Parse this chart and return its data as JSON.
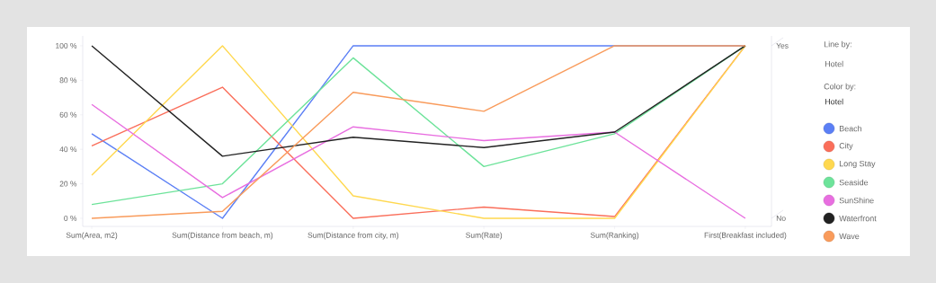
{
  "chart_data": {
    "type": "line",
    "categories": [
      "Sum(Area, m2)",
      "Sum(Distance from beach, m)",
      "Sum(Distance from city, m)",
      "Sum(Rate)",
      "Sum(Ranking)",
      "First(Breakfast included)"
    ],
    "series": [
      {
        "name": "Beach",
        "color": "#5b7ff5",
        "values": [
          49,
          0,
          100,
          100,
          100,
          100
        ]
      },
      {
        "name": "City",
        "color": "#fa6e5a",
        "values": [
          42,
          76,
          0,
          6.5,
          1,
          100
        ]
      },
      {
        "name": "Long Stay",
        "color": "#ffd84f",
        "values": [
          25,
          100,
          13,
          0,
          0,
          100
        ]
      },
      {
        "name": "Seaside",
        "color": "#6de39a",
        "values": [
          8,
          20,
          93,
          30,
          49,
          100
        ]
      },
      {
        "name": "SunShine",
        "color": "#e86ee0",
        "values": [
          66,
          12,
          53,
          45,
          50,
          0
        ]
      },
      {
        "name": "Waterfront",
        "color": "#222222",
        "values": [
          100,
          36,
          47,
          41,
          50,
          100
        ]
      },
      {
        "name": "Wave",
        "color": "#f99b5b",
        "values": [
          0,
          4,
          73,
          62,
          100,
          100
        ]
      }
    ],
    "ylim": [
      -4.7,
      105.7
    ],
    "yticks": [
      {
        "value": 0,
        "label": "0 %"
      },
      {
        "value": 20,
        "label": "20 %"
      },
      {
        "value": 40,
        "label": "40 %"
      },
      {
        "value": 60,
        "label": "60 %"
      },
      {
        "value": 80,
        "label": "80 %"
      },
      {
        "value": 100,
        "label": "100 %"
      }
    ],
    "legend_title": "Hotel",
    "annotations": [
      "Line by:",
      "Hotel",
      "Color by:",
      "Yes",
      "No"
    ],
    "legend": "right",
    "grid": false,
    "marker": "none",
    "line_style": "solid"
  }
}
